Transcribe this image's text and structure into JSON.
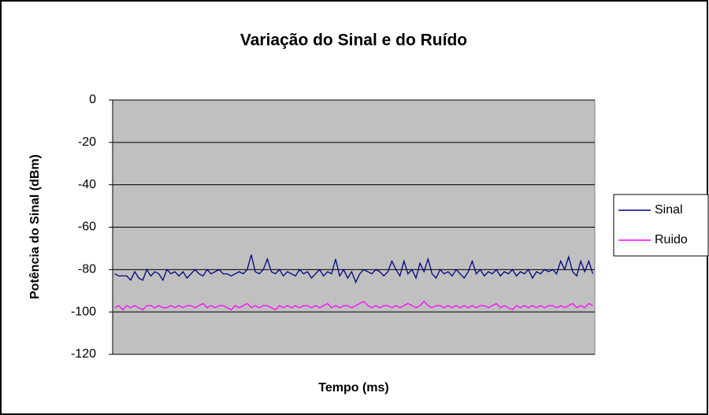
{
  "chart_data": {
    "type": "line",
    "title": "Variação do Sinal e do Ruído",
    "x_label": "Tempo (ms)",
    "y_label": "Potência do Sinal (dBm)",
    "ylim": [
      -120,
      0
    ],
    "yticks": [
      0,
      -20,
      -40,
      -60,
      -80,
      -100,
      -120
    ],
    "grid": true,
    "legend": "right",
    "series": [
      {
        "name": "Sinal",
        "color": "#000080",
        "values": [
          -82,
          -83,
          -83,
          -83,
          -85,
          -81,
          -84,
          -85,
          -80,
          -83,
          -81,
          -82,
          -85,
          -80,
          -82,
          -81,
          -83,
          -81,
          -84,
          -82,
          -80,
          -82,
          -83,
          -80,
          -82,
          -81,
          -80,
          -82,
          -82,
          -83,
          -82,
          -81,
          -82,
          -80,
          -73,
          -81,
          -82,
          -80,
          -75,
          -81,
          -82,
          -80,
          -83,
          -81,
          -82,
          -83,
          -80,
          -82,
          -81,
          -84,
          -82,
          -80,
          -83,
          -81,
          -82,
          -75,
          -83,
          -80,
          -84,
          -81,
          -86,
          -82,
          -80,
          -81,
          -82,
          -80,
          -81,
          -83,
          -81,
          -76,
          -80,
          -83,
          -76,
          -82,
          -80,
          -84,
          -77,
          -81,
          -75,
          -82,
          -84,
          -80,
          -82,
          -81,
          -83,
          -80,
          -82,
          -84,
          -81,
          -76,
          -82,
          -80,
          -83,
          -81,
          -82,
          -80,
          -83,
          -81,
          -82,
          -80,
          -83,
          -81,
          -82,
          -80,
          -84,
          -81,
          -82,
          -80,
          -81,
          -80,
          -82,
          -76,
          -80,
          -74,
          -81,
          -83,
          -76,
          -81,
          -76,
          -82
        ]
      },
      {
        "name": "Ruido",
        "color": "#ff00ff",
        "values": [
          -98,
          -97,
          -99,
          -97,
          -98,
          -97,
          -98,
          -99,
          -97,
          -97,
          -98,
          -97,
          -98,
          -98,
          -97,
          -98,
          -97,
          -98,
          -97,
          -97,
          -98,
          -97,
          -96,
          -98,
          -97,
          -98,
          -97,
          -97,
          -98,
          -99,
          -97,
          -98,
          -97,
          -96,
          -98,
          -97,
          -98,
          -97,
          -97,
          -98,
          -99,
          -97,
          -98,
          -97,
          -98,
          -97,
          -98,
          -97,
          -97,
          -98,
          -97,
          -98,
          -97,
          -96,
          -98,
          -97,
          -98,
          -97,
          -97,
          -98,
          -97,
          -96,
          -95,
          -97,
          -98,
          -97,
          -98,
          -97,
          -97,
          -98,
          -97,
          -98,
          -97,
          -96,
          -97,
          -98,
          -97,
          -95,
          -97,
          -98,
          -97,
          -97,
          -98,
          -97,
          -98,
          -97,
          -98,
          -97,
          -98,
          -97,
          -98,
          -97,
          -97,
          -98,
          -97,
          -96,
          -98,
          -97,
          -98,
          -99,
          -97,
          -98,
          -97,
          -98,
          -97,
          -98,
          -97,
          -98,
          -97,
          -97,
          -98,
          -97,
          -98,
          -97,
          -96,
          -98,
          -97,
          -98,
          -96,
          -97
        ]
      }
    ]
  }
}
